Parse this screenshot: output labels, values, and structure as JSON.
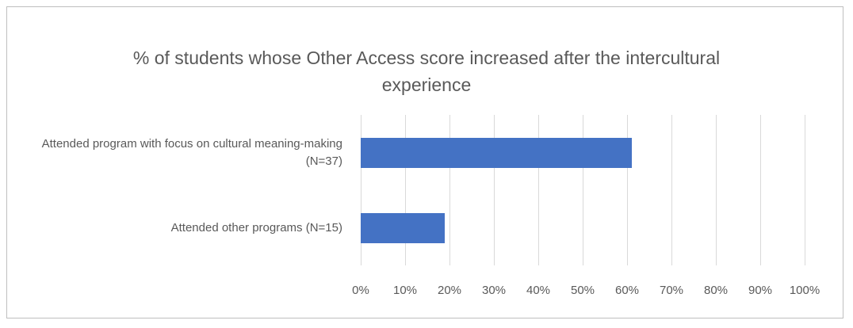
{
  "chart_data": {
    "type": "bar",
    "orientation": "horizontal",
    "title": "% of students whose Other Access score increased after the intercultural experience",
    "categories": [
      "Attended program with focus on cultural meaning-making (N=37)",
      "Attended other programs (N=15)"
    ],
    "values": [
      61,
      19
    ],
    "color": "#4472c4",
    "xlim": [
      0,
      100
    ],
    "xticks": [
      {
        "value": 0,
        "label": "0%"
      },
      {
        "value": 10,
        "label": "10%"
      },
      {
        "value": 20,
        "label": "20%"
      },
      {
        "value": 30,
        "label": "30%"
      },
      {
        "value": 40,
        "label": "40%"
      },
      {
        "value": 50,
        "label": "50%"
      },
      {
        "value": 60,
        "label": "60%"
      },
      {
        "value": 70,
        "label": "70%"
      },
      {
        "value": 80,
        "label": "80%"
      },
      {
        "value": 90,
        "label": "90%"
      },
      {
        "value": 100,
        "label": "100%"
      }
    ],
    "grid": true
  }
}
